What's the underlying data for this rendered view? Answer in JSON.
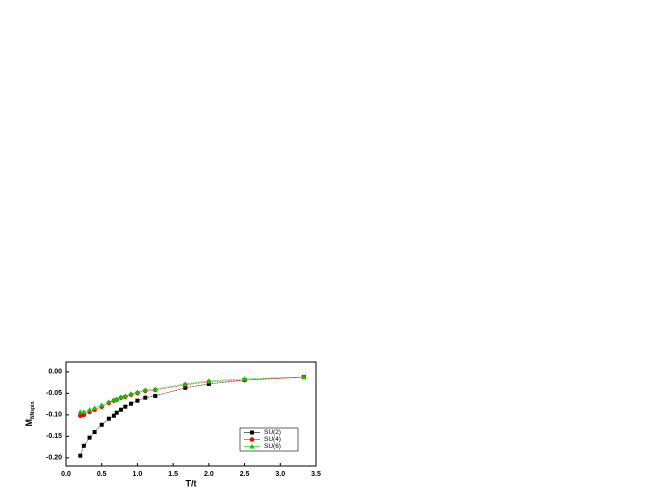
{
  "chart_data": {
    "type": "scatter",
    "x_label": "T/t",
    "y_label": "M",
    "y_label_sub": "NNspin",
    "x": [
      0.2,
      0.25,
      0.33,
      0.4,
      0.5,
      0.6,
      0.67,
      0.71,
      0.77,
      0.83,
      0.91,
      1.0,
      1.11,
      1.25,
      1.67,
      2.0,
      2.5,
      3.33
    ],
    "series": [
      {
        "name": "SU(2)",
        "color": "#000000",
        "marker": "square",
        "values": [
          -0.195,
          -0.172,
          -0.153,
          -0.14,
          -0.123,
          -0.109,
          -0.102,
          -0.095,
          -0.088,
          -0.081,
          -0.074,
          -0.067,
          -0.06,
          -0.056,
          -0.037,
          -0.028,
          -0.019,
          -0.012
        ]
      },
      {
        "name": "SU(4)",
        "color": "#ff0000",
        "marker": "circle",
        "values": [
          -0.102,
          -0.1,
          -0.093,
          -0.088,
          -0.081,
          -0.072,
          -0.067,
          -0.065,
          -0.06,
          -0.058,
          -0.053,
          -0.049,
          -0.044,
          -0.042,
          -0.03,
          -0.023,
          -0.019,
          -0.012
        ]
      },
      {
        "name": "SU(6)",
        "color": "#00cc00",
        "marker": "triangle",
        "values": [
          -0.093,
          -0.093,
          -0.088,
          -0.084,
          -0.077,
          -0.07,
          -0.065,
          -0.063,
          -0.058,
          -0.056,
          -0.051,
          -0.047,
          -0.042,
          -0.04,
          -0.028,
          -0.021,
          -0.016,
          -0.012
        ]
      }
    ],
    "xlim": [
      0,
      3.5
    ],
    "xticks": [
      {
        "value": 0,
        "label": "0.0"
      },
      {
        "value": 0.5,
        "label": "0.5"
      },
      {
        "value": 1,
        "label": "1.0"
      },
      {
        "value": 1.5,
        "label": "1.5"
      },
      {
        "value": 2,
        "label": "2.0"
      },
      {
        "value": 2.5,
        "label": "2.5"
      },
      {
        "value": 3,
        "label": "3.0"
      },
      {
        "value": 3.5,
        "label": "3.5"
      }
    ],
    "ylim": [
      -0.219,
      0.023
    ],
    "yticks": [
      {
        "value": -0.2,
        "label": "-0.20"
      },
      {
        "value": -0.15,
        "label": "-0.15"
      },
      {
        "value": -0.1,
        "label": "-0.10"
      },
      {
        "value": -0.05,
        "label": "-0.05"
      },
      {
        "value": 0,
        "label": "0.00"
      }
    ],
    "legend": "lower right",
    "grid": false
  }
}
